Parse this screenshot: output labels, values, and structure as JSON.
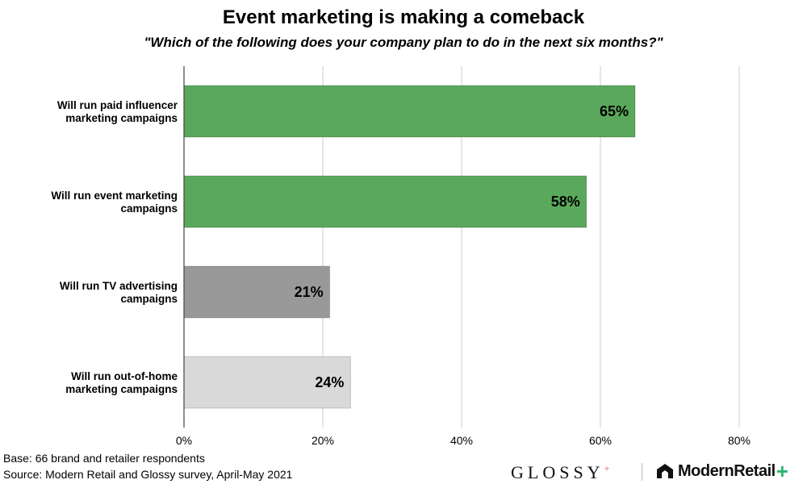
{
  "chart_data": {
    "type": "bar",
    "orientation": "horizontal",
    "title": "Event marketing is making a comeback",
    "subtitle": "\"Which of the following does your company plan to do in the next six months?\"",
    "categories": [
      "Will run paid influencer marketing campaigns",
      "Will run event marketing campaigns",
      "Will run TV advertising campaigns",
      "Will run out-of-home marketing campaigns"
    ],
    "category_lines": [
      [
        "Will run paid influencer",
        "marketing campaigns"
      ],
      [
        "Will run event marketing",
        "campaigns"
      ],
      [
        "Will run TV advertising",
        "campaigns"
      ],
      [
        "Will run out-of-home",
        "marketing campaigns"
      ]
    ],
    "values": [
      65,
      58,
      21,
      24
    ],
    "value_labels": [
      "65%",
      "58%",
      "21%",
      "24%"
    ],
    "bar_colors": [
      "#5aa85c",
      "#5aa85c",
      "#999999",
      "#d9d9d9"
    ],
    "xlim": [
      0,
      80
    ],
    "xticks": [
      0,
      20,
      40,
      60,
      80
    ],
    "xtick_labels": [
      "0%",
      "20%",
      "40%",
      "60%",
      "80%"
    ],
    "grid": true,
    "legend": "none"
  },
  "footnotes": {
    "base": "Base: 66 brand and retailer respondents",
    "source": "Source: Modern Retail and Glossy survey, April-May 2021"
  },
  "logos": {
    "glossy": "GLOSSY",
    "glossy_plus": "+",
    "modern_retail": "ModernRetail",
    "modern_retail_plus": "+"
  },
  "colors": {
    "grid": "#cccccc",
    "axis": "#444444",
    "accent_green": "#2bb673"
  }
}
